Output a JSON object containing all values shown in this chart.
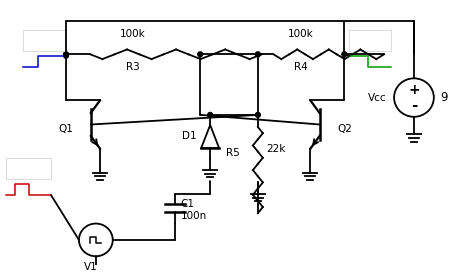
{
  "bg_color": "#ffffff",
  "line_color": "#000000",
  "lw": 1.3,
  "blue_color": "#0000cc",
  "green_color": "#009900",
  "red_color": "#cc0000",
  "gray_color": "#cccccc",
  "vcc_label": "Vcc",
  "v1_label": "V1",
  "q1_label": "Q1",
  "q2_label": "Q2",
  "r3_label": "R3",
  "r4_label": "R4",
  "r5_label": "R5",
  "r3_val": "100k",
  "r4_val": "100k",
  "r5_val": "22k",
  "c1_label": "C1",
  "c1_val": "100n",
  "d1_label": "D1",
  "v_val": "9",
  "fs": 7.5
}
